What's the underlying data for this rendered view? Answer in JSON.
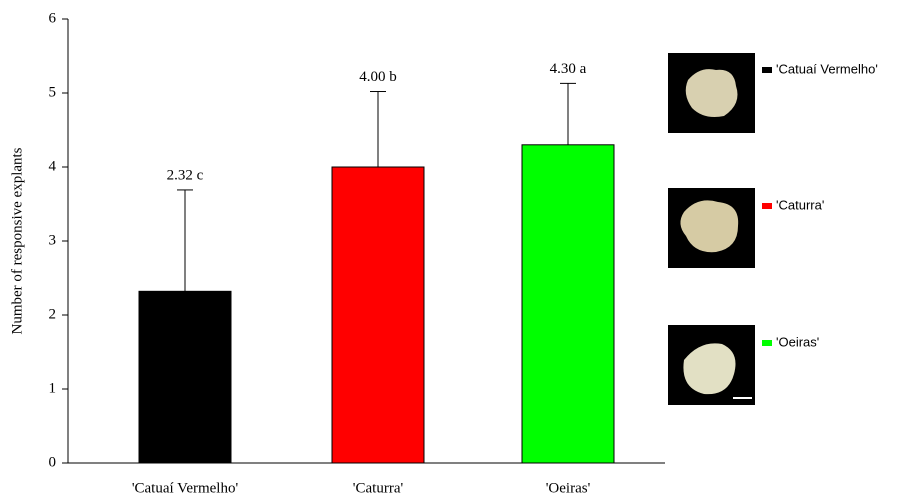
{
  "chart_data": {
    "type": "bar",
    "y_label": "Number of responsive explants",
    "categories": [
      "'Catuaí Vermelho'",
      "'Caturra'",
      "'Oeiras'"
    ],
    "values": [
      2.32,
      4.0,
      4.3
    ],
    "value_labels": [
      "2.32 c",
      "4.00 b",
      "4.30 a"
    ],
    "errors": [
      1.37,
      1.02,
      0.83
    ],
    "colors": [
      "#000000",
      "#ff0000",
      "#00ff00"
    ],
    "ylim": [
      0,
      6
    ],
    "yticks": [
      0,
      1,
      2,
      3,
      4,
      5,
      6
    ]
  }
}
